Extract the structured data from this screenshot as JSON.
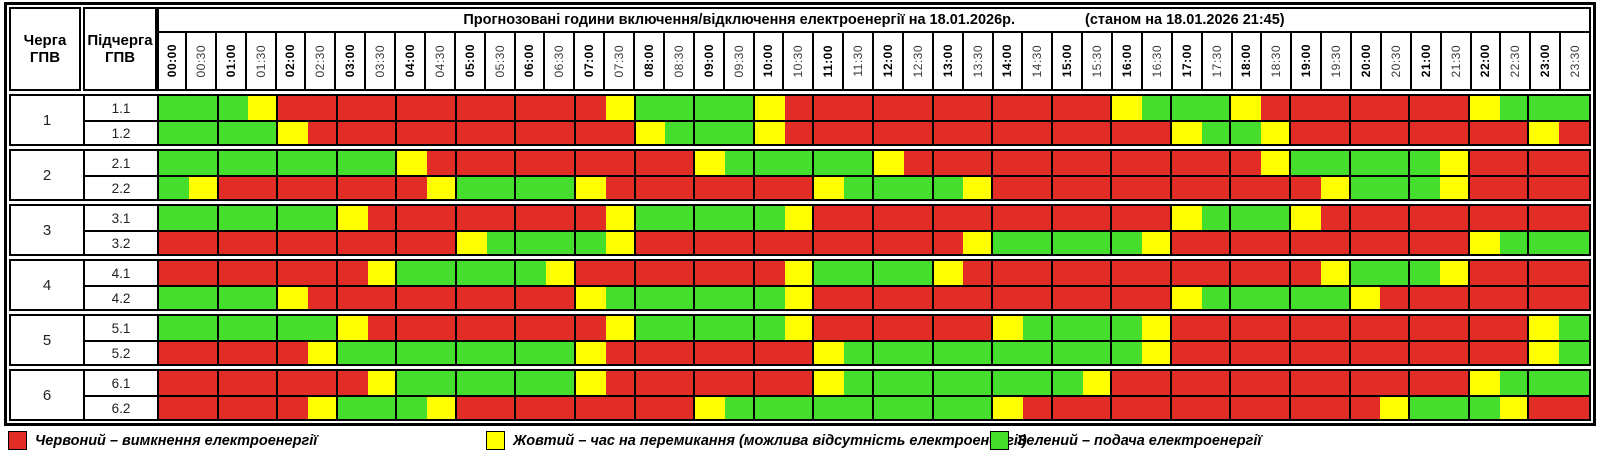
{
  "title": {
    "main": "Прогнозовані години включення/відключення електроенергії на 18.01.2026р.",
    "status": "(станом на 18.01.2026 21:45)"
  },
  "header": {
    "queue_label": "Черга\nГПВ",
    "subqueue_label": "Підчерга\nГПВ"
  },
  "times": [
    "00:00",
    "00:30",
    "01:00",
    "01:30",
    "02:00",
    "02:30",
    "03:00",
    "03:30",
    "04:00",
    "04:30",
    "05:00",
    "05:30",
    "06:00",
    "06:30",
    "07:00",
    "07:30",
    "08:00",
    "08:30",
    "09:00",
    "09:30",
    "10:00",
    "10:30",
    "11:00",
    "11:30",
    "12:00",
    "12:30",
    "13:00",
    "13:30",
    "14:00",
    "14:30",
    "15:00",
    "15:30",
    "16:00",
    "16:30",
    "17:00",
    "17:30",
    "18:00",
    "18:30",
    "19:00",
    "19:30",
    "20:00",
    "20:30",
    "21:00",
    "21:30",
    "22:00",
    "22:30",
    "23:00",
    "23:30"
  ],
  "colors": {
    "red": "#e22d26",
    "yellow": "#ffff00",
    "green": "#46de2d"
  },
  "legend": {
    "items": [
      {
        "color_key": "red",
        "label": "Червоний – вимкнення електроенергії"
      },
      {
        "color_key": "yellow",
        "label": "Жовтий – час на перемикання (можлива відсутність електроенергії)"
      },
      {
        "color_key": "green",
        "label": "Зелений – подача електроенергії"
      }
    ]
  },
  "chart_data": {
    "type": "heatmap",
    "title": "Прогнозовані години включення/відключення електроенергії на 18.01.2026р. (станом на 18.01.2026 21:45)",
    "x": [
      "00:00",
      "00:30",
      "01:00",
      "01:30",
      "02:00",
      "02:30",
      "03:00",
      "03:30",
      "04:00",
      "04:30",
      "05:00",
      "05:30",
      "06:00",
      "06:30",
      "07:00",
      "07:30",
      "08:00",
      "08:30",
      "09:00",
      "09:30",
      "10:00",
      "10:30",
      "11:00",
      "11:30",
      "12:00",
      "12:30",
      "13:00",
      "13:30",
      "14:00",
      "14:30",
      "15:00",
      "15:30",
      "16:00",
      "16:30",
      "17:00",
      "17:30",
      "18:00",
      "18:30",
      "19:00",
      "19:30",
      "20:00",
      "20:30",
      "21:00",
      "21:30",
      "22:00",
      "22:30",
      "23:00",
      "23:30"
    ],
    "value_legend": {
      "R": "вимкнення (червоний)",
      "Y": "перемикання (жовтий)",
      "G": "подача (зелений)"
    },
    "rows": [
      {
        "queue": "1",
        "sub": "1.1",
        "cells": "GGGYRRRRRRRRRRRYGGGGYRRRRRRRRRRRYGGGYRRRRRRRYGGG"
      },
      {
        "queue": "1",
        "sub": "1.2",
        "cells": "GGGGYRRRRRRRRRRRYGGGYRRRRRRRRRRRRRYGGYRRRRRRRRYR"
      },
      {
        "queue": "2",
        "sub": "2.1",
        "cells": "GGGGGGGGYRRRRRRRRRYGGGGGYRRRRRRRRRRRRYGGGGGYRRRR"
      },
      {
        "queue": "2",
        "sub": "2.2",
        "cells": "GYRRRRRRRYGGGGYRRRRRRRYGGGGYRRRRRRRRRRRYGGGYRRRR"
      },
      {
        "queue": "3",
        "sub": "3.1",
        "cells": "GGGGGGYRRRRRRRRYGGGGGYRRRRRRRRRRRRYGGGYRRRRRRRRR"
      },
      {
        "queue": "3",
        "sub": "3.2",
        "cells": "RRRRRRRRRRYGGGGYRRRRRRRRRRRYGGGGGYRRRRRRRRRRYGGG"
      },
      {
        "queue": "4",
        "sub": "4.1",
        "cells": "RRRRRRRYGGGGGYRRRRRRRYGGGGYRRRRRRRRRRRRYGGGYRRRR"
      },
      {
        "queue": "4",
        "sub": "4.2",
        "cells": "GGGGYRRRRRRRRRYGGGGGGYRRRRRRRRRRRRYGGGGGYRRRRRRR"
      },
      {
        "queue": "5",
        "sub": "5.1",
        "cells": "GGGGGGYRRRRRRRRYGGGGGYRRRRRRYGGGGYRRRRRRRRRRRRYG"
      },
      {
        "queue": "5",
        "sub": "5.2",
        "cells": "RRRRRYGGGGGGGGYRRRRRRRYGGGGGGGGGGYRRRRRRRRRRRRYG"
      },
      {
        "queue": "6",
        "sub": "6.1",
        "cells": "RRRRRRRYGGGGGGYRRRRRRRYGGGGGGGGYRRRRRRRRRRRRYGGG"
      },
      {
        "queue": "6",
        "sub": "6.2",
        "cells": "RRRRRYGGGYRRRRRRRRYGGGGGGGGGYRRRRRRRRRRRRYGGGYRR"
      }
    ]
  }
}
